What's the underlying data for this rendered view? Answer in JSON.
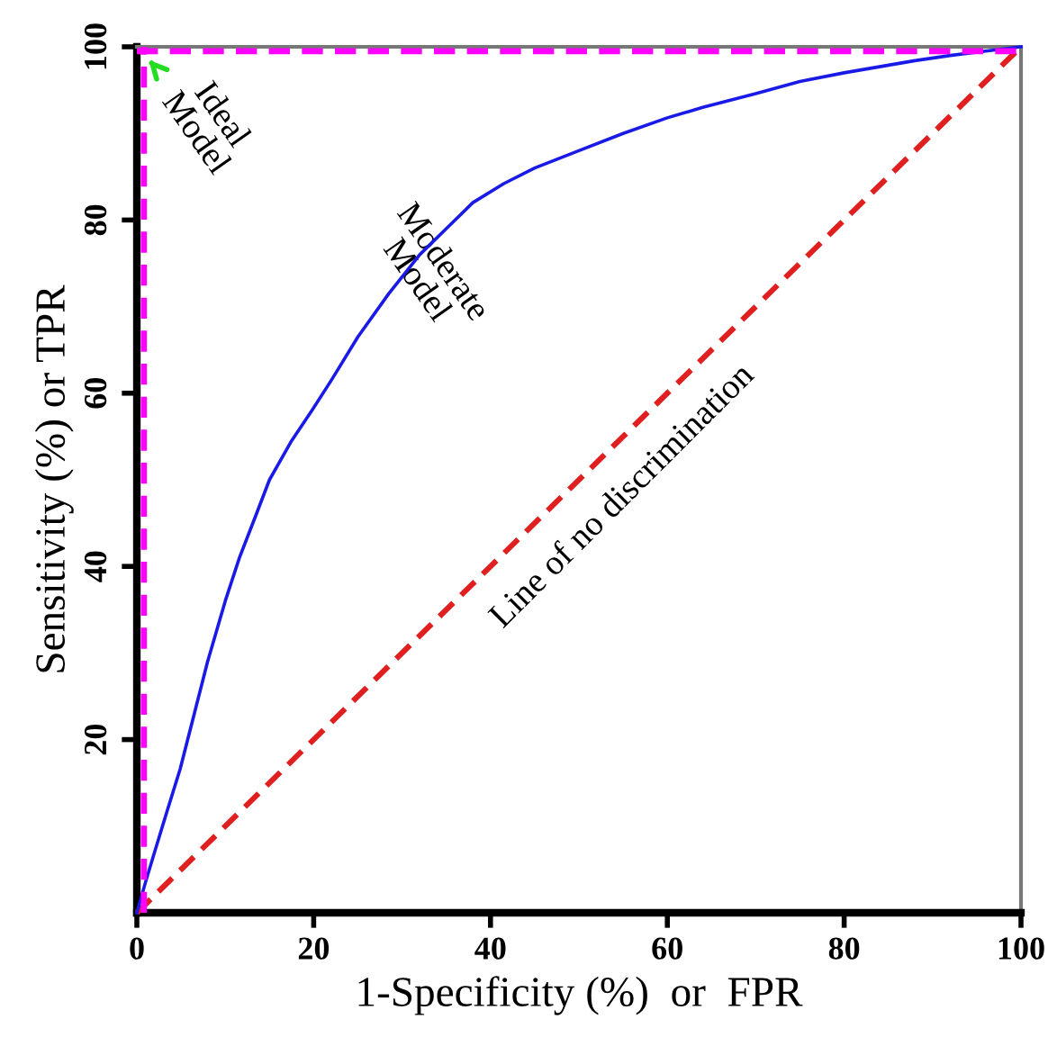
{
  "chart_data": {
    "type": "line",
    "xlabel": "1-Specificity (%)  or  FPR",
    "ylabel": "Sensitivity (%) or TPR",
    "xlim": [
      0,
      100
    ],
    "ylim": [
      0,
      100
    ],
    "xticks": [
      0,
      20,
      40,
      60,
      80,
      100
    ],
    "yticks": [
      20,
      40,
      60,
      80,
      100
    ],
    "grid": false,
    "legend": false,
    "marker": "none",
    "series": [
      {
        "color": "#e02020",
        "line_style": "dashed",
        "x": [
          0,
          100
        ],
        "values": [
          0,
          100
        ]
      },
      {
        "color": "#1a1ae6",
        "line_style": "solid",
        "x": [
          0,
          1,
          2,
          3.5,
          4.9,
          6.5,
          8,
          10,
          11.6,
          13.5,
          15,
          17.5,
          19.8,
          22,
          25,
          28.5,
          32,
          35,
          38,
          41.5,
          45,
          50,
          55,
          60,
          64,
          70,
          75,
          80,
          84,
          88,
          92,
          96,
          100
        ],
        "values": [
          0,
          3.6,
          7,
          12,
          16.6,
          23,
          29,
          36,
          41,
          46,
          50,
          54.5,
          58,
          61.5,
          66.5,
          71.5,
          76,
          79,
          82,
          84.2,
          86,
          88,
          90,
          91.8,
          93,
          94.6,
          96,
          97,
          97.7,
          98.4,
          99,
          99.5,
          100
        ]
      }
    ],
    "ref_lines": [
      {
        "axis": "x",
        "value": 0.8,
        "color": "#ff00ff",
        "line_style": "dashed"
      },
      {
        "axis": "y",
        "value": 99.5,
        "color": "#ff00ff",
        "line_style": "dashed"
      }
    ],
    "annotations": [
      {
        "text": "Ideal\nModel",
        "x": 0,
        "y": 100
      },
      "Moderate\nModel",
      "Line of no discrimination"
    ]
  }
}
